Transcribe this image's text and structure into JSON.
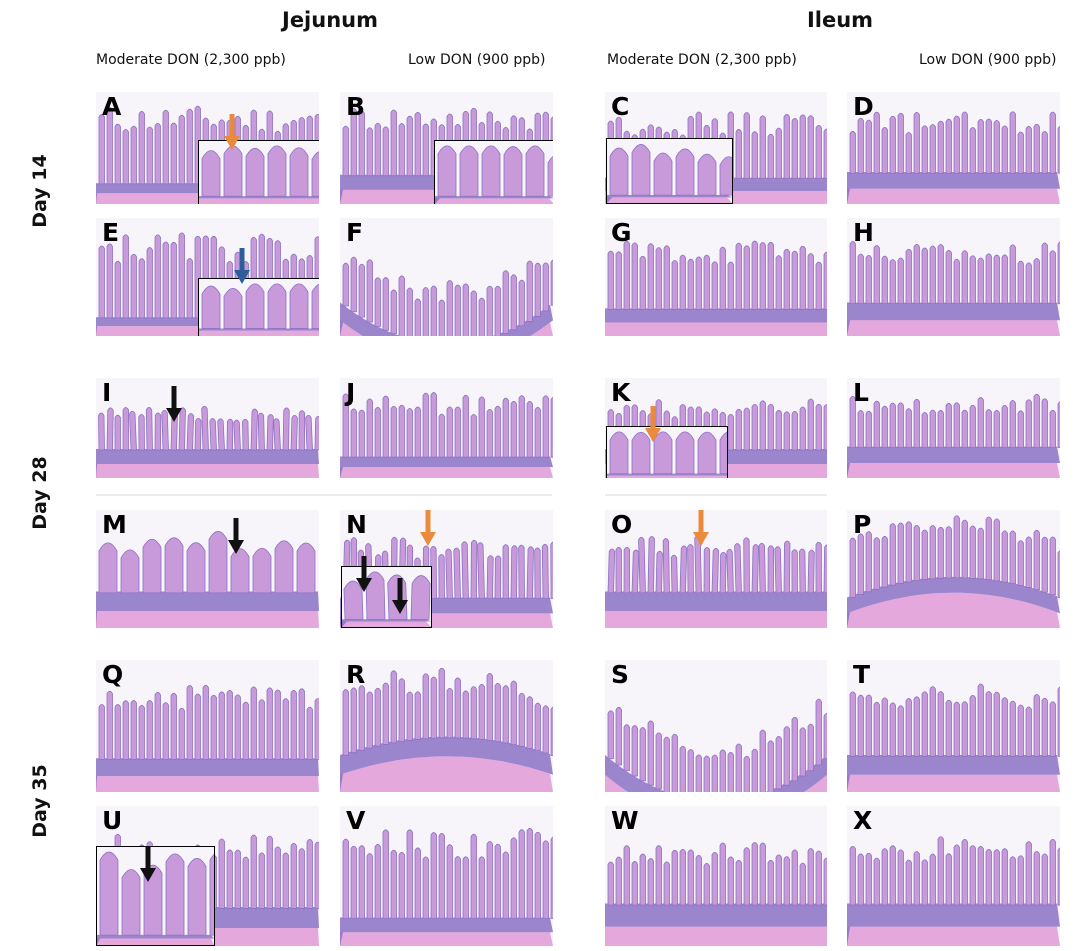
{
  "headers": {
    "jejunum": "Jejunum",
    "ileum": "Ileum"
  },
  "subheaders": {
    "jejunum_moderate": "Moderate DON (2,300 ppb)",
    "jejunum_low": "Low DON (900 ppb)",
    "ileum_moderate": "Moderate DON (2,300 ppb)",
    "ileum_low": "Low DON (900 ppb)"
  },
  "rows": {
    "day14": "Day 14",
    "day28": "Day 28",
    "day35": "Day 35"
  },
  "panels": [
    "A",
    "B",
    "C",
    "D",
    "E",
    "F",
    "G",
    "H",
    "I",
    "J",
    "K",
    "L",
    "M",
    "N",
    "O",
    "P",
    "Q",
    "R",
    "S",
    "T",
    "U",
    "V",
    "W",
    "X"
  ],
  "colors": {
    "tissue": "#c99ad9",
    "tissue_dark": "#8b72c4",
    "muscle": "#e4a8dc",
    "arrow_orange": "#e98a3c",
    "arrow_blue": "#2d5e9b",
    "arrow_black": "#111111"
  }
}
